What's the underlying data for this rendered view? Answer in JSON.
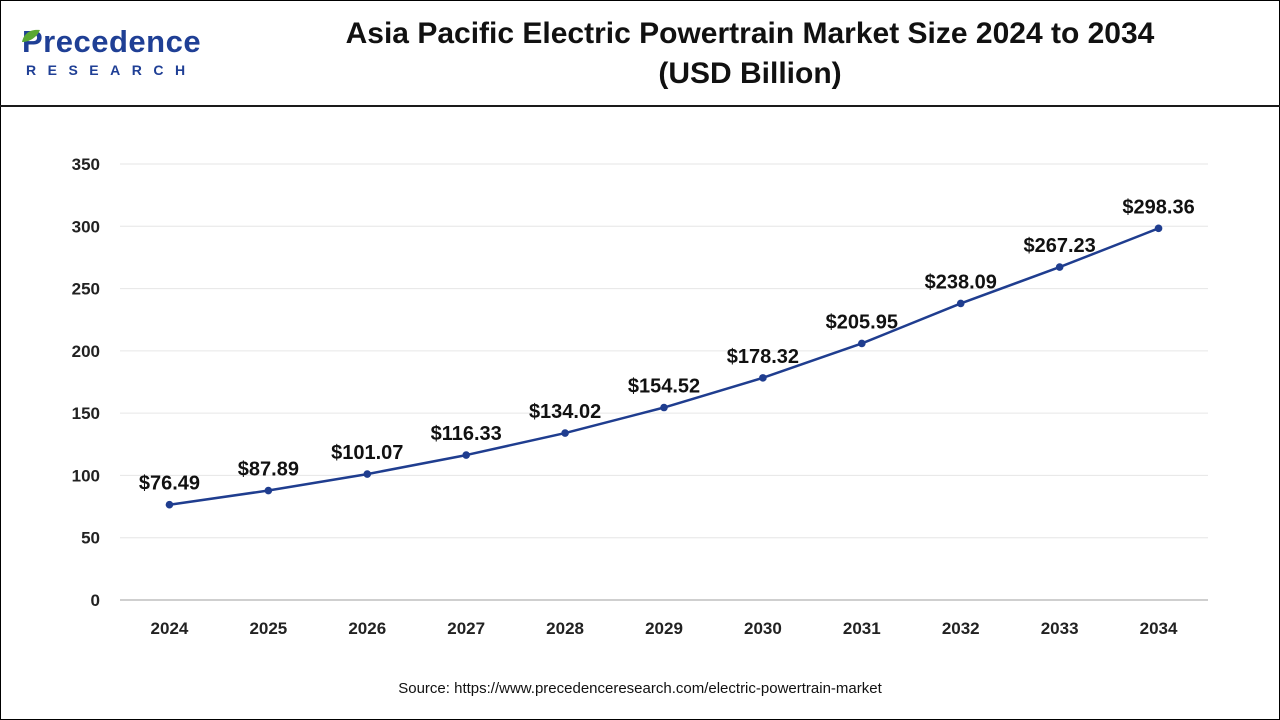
{
  "header": {
    "logo_name": "Precedence",
    "logo_sub": "RESEARCH",
    "title_line1": "Asia Pacific Electric Powertrain Market Size 2024 to 2034",
    "title_line2": "(USD Billion)"
  },
  "colors": {
    "line": "#1f3d8f",
    "brand": "#1f3f95",
    "grid": "#e6e6e6",
    "axis": "#bfbfbf"
  },
  "chart_data": {
    "type": "line",
    "title": "Asia Pacific Electric Powertrain Market Size 2024 to 2034 (USD Billion)",
    "xlabel": "",
    "ylabel": "",
    "ylim": [
      0,
      350
    ],
    "yticks": [
      0,
      50,
      100,
      150,
      200,
      250,
      300,
      350
    ],
    "grid": true,
    "legend": "none",
    "categories": [
      "2024",
      "2025",
      "2026",
      "2027",
      "2028",
      "2029",
      "2030",
      "2031",
      "2032",
      "2033",
      "2034"
    ],
    "series": [
      {
        "values": [
          76.49,
          87.89,
          101.07,
          116.33,
          134.02,
          154.52,
          178.32,
          205.95,
          238.09,
          267.23,
          298.36
        ],
        "labels": [
          "$76.49",
          "$87.89",
          "$101.07",
          "$116.33",
          "$134.02",
          "$154.52",
          "$178.32",
          "$205.95",
          "$238.09",
          "$267.23",
          "$298.36"
        ]
      }
    ]
  },
  "footer": {
    "source": "Source: https://www.precedenceresearch.com/electric-powertrain-market"
  }
}
